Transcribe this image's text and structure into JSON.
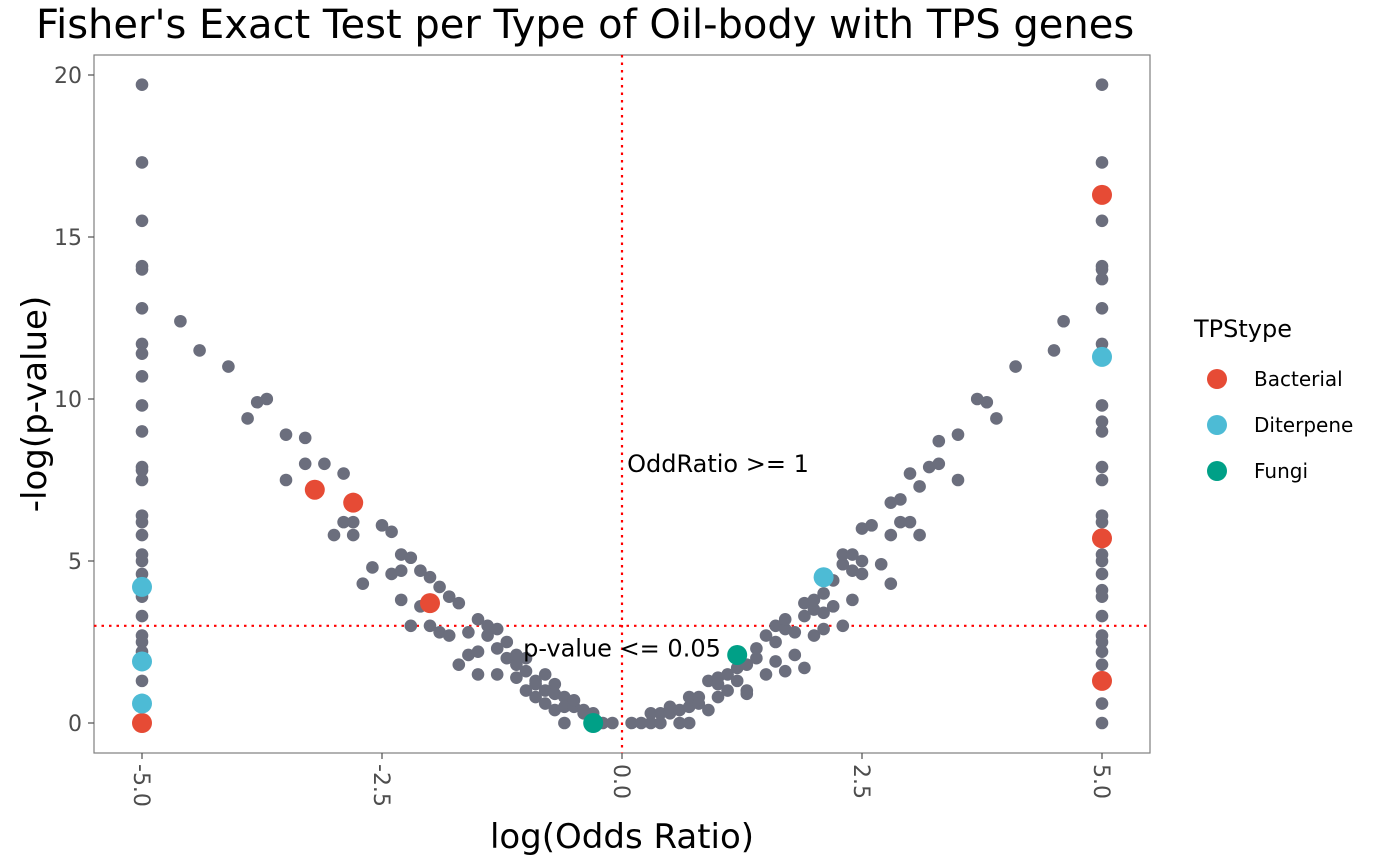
{
  "chart_data": {
    "type": "scatter",
    "title": "Fisher's Exact Test per Type of Oil-body with TPS genes",
    "xlabel": "log(Odds Ratio)",
    "ylabel": "-log(p-value)",
    "xlim": [
      -5.0,
      5.0
    ],
    "ylim": [
      0,
      20
    ],
    "x_ticks": [
      "-5.0",
      "-2.5",
      "0.0",
      "2.5",
      "5.0"
    ],
    "y_ticks": [
      "0",
      "5",
      "10",
      "15",
      "20"
    ],
    "grid": false,
    "reference_lines": [
      {
        "orientation": "vertical",
        "value": 0,
        "color": "#ff0000",
        "style": "dotted"
      },
      {
        "orientation": "horizontal",
        "value": 3,
        "color": "#ff0000",
        "style": "dotted"
      }
    ],
    "annotations": [
      {
        "text": "OddRatio >= 1",
        "x": 1.0,
        "y": 8.0
      },
      {
        "text": "p-value <= 0.05",
        "x": 0.0,
        "y": 2.3
      }
    ],
    "background_color": "#6b6e7d",
    "background_points": [
      [
        -5,
        19.7
      ],
      [
        -5,
        17.3
      ],
      [
        -5,
        15.5
      ],
      [
        -5,
        14.1
      ],
      [
        -5,
        14.0
      ],
      [
        -5,
        12.8
      ],
      [
        -5,
        11.7
      ],
      [
        -5,
        11.4
      ],
      [
        -5,
        10.7
      ],
      [
        -5,
        9.8
      ],
      [
        -5,
        9.0
      ],
      [
        -5,
        7.9
      ],
      [
        -5,
        7.8
      ],
      [
        -5,
        7.5
      ],
      [
        -5,
        6.4
      ],
      [
        -5,
        6.2
      ],
      [
        -5,
        5.8
      ],
      [
        -5,
        5.2
      ],
      [
        -5,
        5.0
      ],
      [
        -5,
        4.6
      ],
      [
        -5,
        4.1
      ],
      [
        -5,
        3.9
      ],
      [
        -5,
        3.3
      ],
      [
        -5,
        2.7
      ],
      [
        -5,
        2.5
      ],
      [
        -5,
        2.2
      ],
      [
        -5,
        1.3
      ],
      [
        -5,
        0.0
      ],
      [
        5,
        19.7
      ],
      [
        5,
        17.3
      ],
      [
        5,
        15.5
      ],
      [
        5,
        14.1
      ],
      [
        5,
        14.0
      ],
      [
        5,
        13.7
      ],
      [
        5,
        12.8
      ],
      [
        5,
        11.7
      ],
      [
        5,
        9.8
      ],
      [
        5,
        9.3
      ],
      [
        5,
        9.0
      ],
      [
        5,
        7.9
      ],
      [
        5,
        7.5
      ],
      [
        5,
        6.4
      ],
      [
        5,
        6.2
      ],
      [
        5,
        5.2
      ],
      [
        5,
        5.0
      ],
      [
        5,
        4.6
      ],
      [
        5,
        4.1
      ],
      [
        5,
        3.9
      ],
      [
        5,
        3.3
      ],
      [
        5,
        2.7
      ],
      [
        5,
        2.5
      ],
      [
        5,
        2.2
      ],
      [
        5,
        1.8
      ],
      [
        5,
        1.3
      ],
      [
        5,
        0.6
      ],
      [
        5,
        0.0
      ],
      [
        -4.6,
        12.4
      ],
      [
        -4.4,
        11.5
      ],
      [
        -4.1,
        11.0
      ],
      [
        -3.9,
        9.4
      ],
      [
        -3.8,
        9.9
      ],
      [
        -3.7,
        10.0
      ],
      [
        -3.5,
        8.9
      ],
      [
        -3.5,
        7.5
      ],
      [
        -3.3,
        8.8
      ],
      [
        -3.3,
        8.0
      ],
      [
        -3.1,
        8.0
      ],
      [
        -3.0,
        5.8
      ],
      [
        -2.9,
        7.7
      ],
      [
        -2.9,
        6.2
      ],
      [
        -2.8,
        6.2
      ],
      [
        -2.8,
        5.8
      ],
      [
        -2.7,
        4.3
      ],
      [
        -2.6,
        4.8
      ],
      [
        -2.5,
        6.1
      ],
      [
        -2.4,
        5.9
      ],
      [
        -2.4,
        4.6
      ],
      [
        -2.3,
        5.2
      ],
      [
        -2.3,
        4.7
      ],
      [
        -2.3,
        3.8
      ],
      [
        -2.2,
        5.1
      ],
      [
        -2.2,
        3.0
      ],
      [
        -2.1,
        3.6
      ],
      [
        -2.1,
        4.7
      ],
      [
        -2.0,
        3.0
      ],
      [
        -2.0,
        4.5
      ],
      [
        -2.0,
        3.7
      ],
      [
        -1.9,
        4.2
      ],
      [
        -1.9,
        2.8
      ],
      [
        -1.8,
        2.7
      ],
      [
        -1.8,
        3.9
      ],
      [
        -1.7,
        3.7
      ],
      [
        -1.7,
        1.8
      ],
      [
        -1.6,
        2.1
      ],
      [
        -1.6,
        2.8
      ],
      [
        -1.5,
        3.2
      ],
      [
        -1.5,
        1.5
      ],
      [
        -1.5,
        2.2
      ],
      [
        -1.4,
        3.0
      ],
      [
        -1.4,
        2.7
      ],
      [
        -1.3,
        2.9
      ],
      [
        -1.3,
        1.5
      ],
      [
        -1.3,
        2.3
      ],
      [
        -1.2,
        2.5
      ],
      [
        -1.2,
        2.0
      ],
      [
        -1.1,
        1.4
      ],
      [
        -1.1,
        1.8
      ],
      [
        -1.1,
        2.1
      ],
      [
        -1.0,
        1.0
      ],
      [
        -1.0,
        1.6
      ],
      [
        -1.0,
        2.0
      ],
      [
        -0.9,
        1.3
      ],
      [
        -0.9,
        0.8
      ],
      [
        -0.9,
        1.2
      ],
      [
        -0.8,
        1.5
      ],
      [
        -0.8,
        0.6
      ],
      [
        -0.8,
        1.0
      ],
      [
        -0.7,
        1.2
      ],
      [
        -0.7,
        0.4
      ],
      [
        -0.7,
        0.9
      ],
      [
        -0.6,
        0.8
      ],
      [
        -0.6,
        0.5
      ],
      [
        -0.6,
        0.0
      ],
      [
        -0.5,
        0.5
      ],
      [
        -0.5,
        0.7
      ],
      [
        -0.4,
        0.3
      ],
      [
        -0.4,
        0.4
      ],
      [
        -0.3,
        0.0
      ],
      [
        -0.3,
        0.3
      ],
      [
        -0.2,
        0.0
      ],
      [
        -0.1,
        0.0
      ],
      [
        0.1,
        0.0
      ],
      [
        0.2,
        0.0
      ],
      [
        0.3,
        0.0
      ],
      [
        0.3,
        0.3
      ],
      [
        0.4,
        0.3
      ],
      [
        0.4,
        0.0
      ],
      [
        0.5,
        0.3
      ],
      [
        0.5,
        0.5
      ],
      [
        0.6,
        0.4
      ],
      [
        0.6,
        0.0
      ],
      [
        0.7,
        0.5
      ],
      [
        0.7,
        0.8
      ],
      [
        0.7,
        0.0
      ],
      [
        0.8,
        0.8
      ],
      [
        0.8,
        0.6
      ],
      [
        0.9,
        1.3
      ],
      [
        0.9,
        0.4
      ],
      [
        1.0,
        1.2
      ],
      [
        1.0,
        0.8
      ],
      [
        1.0,
        1.4
      ],
      [
        1.1,
        1.5
      ],
      [
        1.1,
        1.0
      ],
      [
        1.2,
        1.7
      ],
      [
        1.2,
        1.3
      ],
      [
        1.3,
        1.0
      ],
      [
        1.3,
        1.8
      ],
      [
        1.3,
        0.9
      ],
      [
        1.4,
        2.0
      ],
      [
        1.4,
        2.3
      ],
      [
        1.5,
        2.7
      ],
      [
        1.5,
        1.5
      ],
      [
        1.6,
        2.5
      ],
      [
        1.6,
        1.9
      ],
      [
        1.6,
        3.0
      ],
      [
        1.7,
        2.9
      ],
      [
        1.7,
        3.2
      ],
      [
        1.7,
        1.6
      ],
      [
        1.8,
        2.8
      ],
      [
        1.8,
        2.1
      ],
      [
        1.9,
        3.3
      ],
      [
        1.9,
        3.7
      ],
      [
        1.9,
        1.7
      ],
      [
        2.0,
        3.5
      ],
      [
        2.0,
        3.8
      ],
      [
        2.0,
        2.7
      ],
      [
        2.1,
        3.4
      ],
      [
        2.1,
        2.9
      ],
      [
        2.1,
        4.0
      ],
      [
        2.2,
        4.4
      ],
      [
        2.2,
        3.6
      ],
      [
        2.3,
        5.2
      ],
      [
        2.3,
        4.9
      ],
      [
        2.3,
        3.0
      ],
      [
        2.4,
        5.2
      ],
      [
        2.4,
        4.7
      ],
      [
        2.4,
        3.8
      ],
      [
        2.5,
        5.0
      ],
      [
        2.5,
        4.6
      ],
      [
        2.5,
        6.0
      ],
      [
        2.6,
        6.1
      ],
      [
        2.7,
        4.9
      ],
      [
        2.8,
        5.8
      ],
      [
        2.8,
        4.3
      ],
      [
        2.8,
        6.8
      ],
      [
        2.9,
        6.2
      ],
      [
        2.9,
        6.9
      ],
      [
        3.0,
        6.2
      ],
      [
        3.0,
        7.7
      ],
      [
        3.1,
        5.8
      ],
      [
        3.1,
        7.3
      ],
      [
        3.2,
        7.9
      ],
      [
        3.3,
        8.7
      ],
      [
        3.3,
        8.0
      ],
      [
        3.5,
        7.5
      ],
      [
        3.5,
        8.9
      ],
      [
        3.7,
        10.0
      ],
      [
        3.8,
        9.9
      ],
      [
        3.9,
        9.4
      ],
      [
        4.1,
        11.0
      ],
      [
        4.5,
        11.5
      ],
      [
        4.6,
        12.4
      ]
    ],
    "series": [
      {
        "name": "Bacterial",
        "color": "#e64b35",
        "points": [
          [
            -5,
            0.0
          ],
          [
            -3.2,
            7.2
          ],
          [
            -2.8,
            6.8
          ],
          [
            -2.0,
            3.7
          ],
          [
            5,
            16.3
          ],
          [
            5,
            5.7
          ],
          [
            5,
            1.3
          ]
        ]
      },
      {
        "name": "Diterpene",
        "color": "#4dbbd5",
        "points": [
          [
            -5,
            4.2
          ],
          [
            -5,
            1.9
          ],
          [
            -5,
            0.6
          ],
          [
            2.1,
            4.5
          ],
          [
            5,
            11.3
          ]
        ]
      },
      {
        "name": "Fungi",
        "color": "#00a087",
        "points": [
          [
            -0.3,
            0.0
          ],
          [
            1.2,
            2.1
          ]
        ]
      }
    ],
    "legend": {
      "title": "TPStype",
      "placement": "right"
    }
  }
}
